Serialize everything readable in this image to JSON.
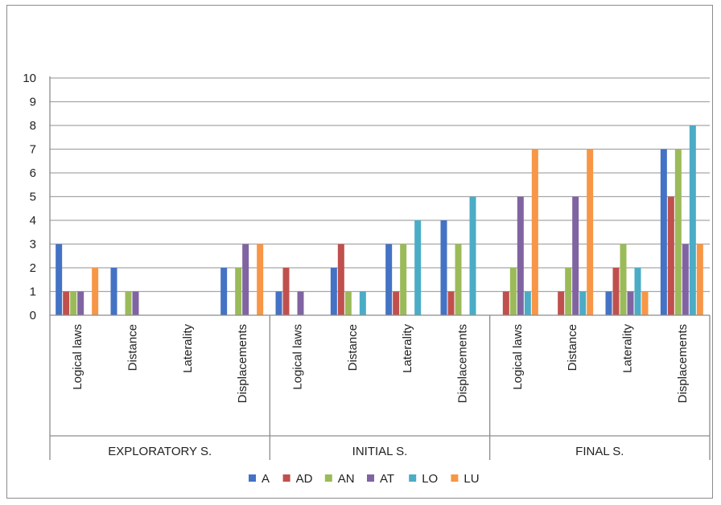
{
  "chart_data": {
    "type": "bar",
    "title": "",
    "xlabel": "",
    "ylabel": "",
    "ylim": [
      0,
      10
    ],
    "yticks": [
      "0",
      "1",
      "2",
      "3",
      "4",
      "5",
      "6",
      "7",
      "8",
      "9",
      "10"
    ],
    "grid": true,
    "legend_position": "bottom",
    "groups": [
      {
        "label": "EXPLORATORY S.",
        "categories": [
          "Logical laws",
          "Distance",
          "Laterality",
          "Displacements"
        ]
      },
      {
        "label": "INITIAL S.",
        "categories": [
          "Logical laws",
          "Distance",
          "Laterality",
          "Displacements"
        ]
      },
      {
        "label": "FINAL S.",
        "categories": [
          "Logical laws",
          "Distance",
          "Laterality",
          "Displacements"
        ]
      }
    ],
    "categories": [
      "Logical laws",
      "Distance",
      "Laterality",
      "Displacements",
      "Logical laws",
      "Distance",
      "Laterality",
      "Displacements",
      "Logical laws",
      "Distance",
      "Laterality",
      "Displacements"
    ],
    "series": [
      {
        "name": "A",
        "color": "#4472c4",
        "values": [
          3,
          2,
          0,
          2,
          1,
          2,
          3,
          4,
          0,
          0,
          1,
          7
        ]
      },
      {
        "name": "AD",
        "color": "#c0504d",
        "values": [
          1,
          0,
          0,
          0,
          2,
          3,
          1,
          1,
          1,
          1,
          2,
          5
        ]
      },
      {
        "name": "AN",
        "color": "#9bbb59",
        "values": [
          1,
          1,
          0,
          2,
          0,
          1,
          3,
          3,
          2,
          2,
          3,
          7
        ]
      },
      {
        "name": "AT",
        "color": "#8064a2",
        "values": [
          1,
          1,
          0,
          3,
          1,
          0,
          0,
          0,
          5,
          5,
          1,
          3
        ]
      },
      {
        "name": "LO",
        "color": "#4bacc6",
        "values": [
          0,
          0,
          0,
          0,
          0,
          1,
          4,
          5,
          1,
          1,
          2,
          8
        ]
      },
      {
        "name": "LU",
        "color": "#f79646",
        "values": [
          2,
          0,
          0,
          3,
          0,
          0,
          0,
          0,
          7,
          7,
          1,
          3
        ]
      }
    ]
  }
}
